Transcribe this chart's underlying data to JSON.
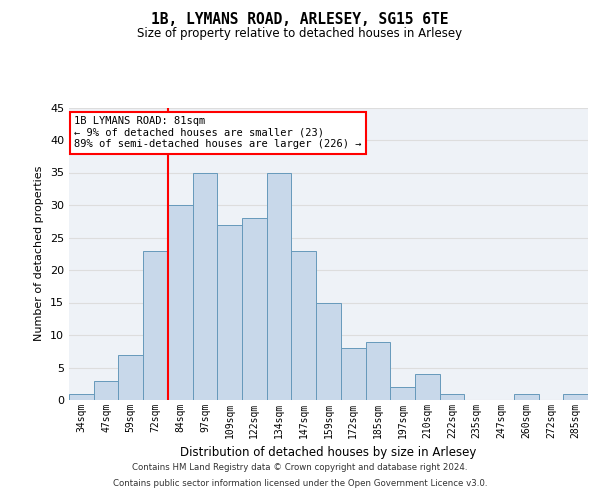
{
  "title_line1": "1B, LYMANS ROAD, ARLESEY, SG15 6TE",
  "title_line2": "Size of property relative to detached houses in Arlesey",
  "xlabel": "Distribution of detached houses by size in Arlesey",
  "ylabel": "Number of detached properties",
  "categories": [
    "34sqm",
    "47sqm",
    "59sqm",
    "72sqm",
    "84sqm",
    "97sqm",
    "109sqm",
    "122sqm",
    "134sqm",
    "147sqm",
    "159sqm",
    "172sqm",
    "185sqm",
    "197sqm",
    "210sqm",
    "222sqm",
    "235sqm",
    "247sqm",
    "260sqm",
    "272sqm",
    "285sqm"
  ],
  "bar_heights": [
    1,
    3,
    7,
    23,
    30,
    35,
    27,
    28,
    35,
    23,
    15,
    8,
    9,
    2,
    4,
    1,
    0,
    0,
    1,
    0,
    1
  ],
  "bar_color": "#c8d8ea",
  "bar_edge_color": "#6699bb",
  "grid_color": "#dddddd",
  "annotation_text": "1B LYMANS ROAD: 81sqm\n← 9% of detached houses are smaller (23)\n89% of semi-detached houses are larger (226) →",
  "annotation_box_color": "white",
  "annotation_box_edge_color": "red",
  "vline_x_index": 3.5,
  "vline_color": "red",
  "ylim": [
    0,
    45
  ],
  "yticks": [
    0,
    5,
    10,
    15,
    20,
    25,
    30,
    35,
    40,
    45
  ],
  "footer_line1": "Contains HM Land Registry data © Crown copyright and database right 2024.",
  "footer_line2": "Contains public sector information licensed under the Open Government Licence v3.0.",
  "bg_color": "#ffffff",
  "plot_bg_color": "#eef2f7"
}
